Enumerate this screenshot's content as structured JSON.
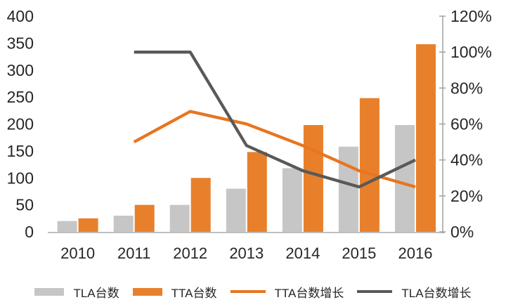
{
  "chart_data": {
    "type": "bar",
    "subtype": "combo-bar-line",
    "title": "",
    "categories": [
      "2010",
      "2011",
      "2012",
      "2013",
      "2014",
      "2015",
      "2016"
    ],
    "series": [
      {
        "name": "TLA台数",
        "kind": "bar",
        "axis": "left",
        "color": "#C6C6C6",
        "values": [
          20,
          30,
          50,
          80,
          118,
          158,
          198
        ]
      },
      {
        "name": "TTA台数",
        "kind": "bar",
        "axis": "left",
        "color": "#E8802B",
        "values": [
          25,
          50,
          100,
          148,
          198,
          248,
          348
        ]
      },
      {
        "name": "TTA台数增长",
        "kind": "line",
        "axis": "right",
        "color": "#E8751F",
        "unit": "%",
        "values": [
          null,
          50,
          67,
          60,
          48,
          34,
          25
        ]
      },
      {
        "name": "TLA台数增长",
        "kind": "line",
        "axis": "right",
        "color": "#595959",
        "unit": "%",
        "values": [
          null,
          100,
          100,
          48,
          34,
          25,
          40
        ]
      }
    ],
    "left_axis": {
      "min": 0,
      "max": 400,
      "step": 50,
      "tick_labels": [
        "0",
        "50",
        "100",
        "150",
        "200",
        "250",
        "300",
        "350",
        "400"
      ]
    },
    "right_axis": {
      "min": 0,
      "max": 120,
      "step": 20,
      "tick_labels": [
        "0%",
        "20%",
        "40%",
        "60%",
        "80%",
        "100%",
        "120%"
      ]
    },
    "grid": false,
    "legend_position": "bottom",
    "colors": {
      "x_axis_line": "#BFBFBF",
      "right_axis_line": "#A6A6A6",
      "tick_text": "#262626"
    }
  }
}
